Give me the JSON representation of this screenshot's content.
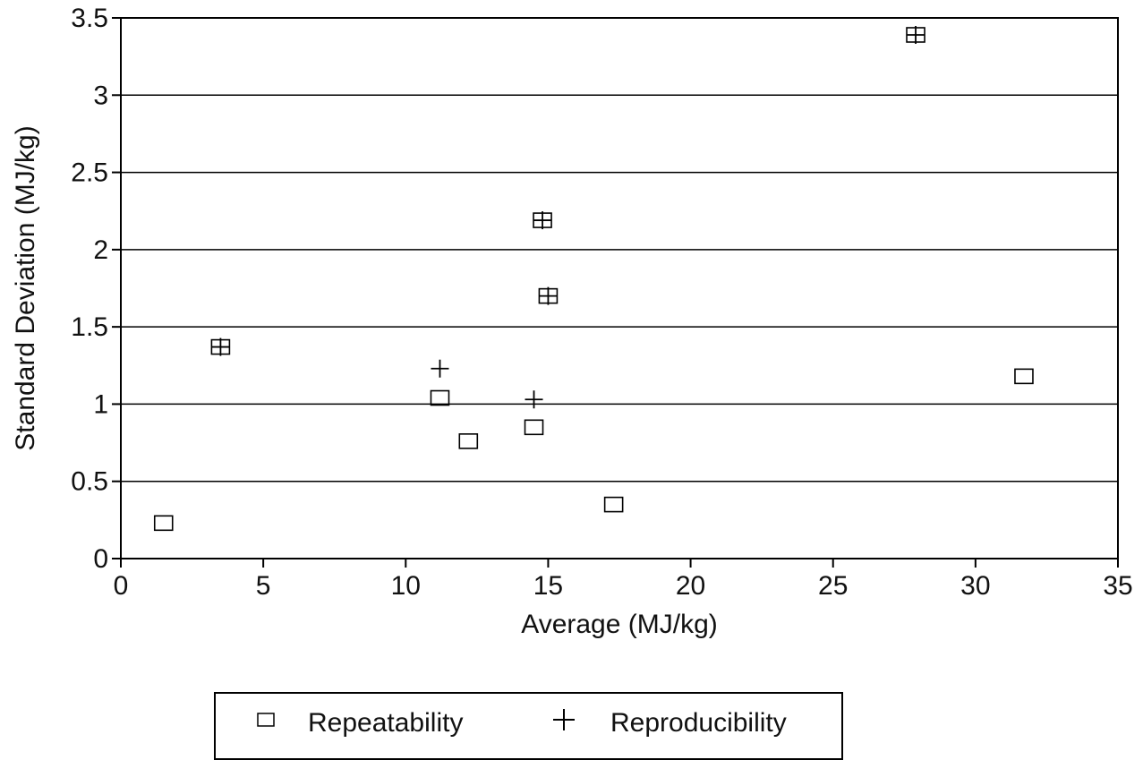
{
  "chart_data": {
    "type": "scatter",
    "title": "",
    "xlabel": "Average (MJ/kg)",
    "ylabel": "Standard Deviation (MJ/kg)",
    "xlim": [
      0,
      35
    ],
    "ylim": [
      0,
      3.5
    ],
    "x_ticks": [
      0,
      5,
      10,
      15,
      20,
      25,
      30,
      35
    ],
    "x_tick_labels": [
      "0",
      "5",
      "10",
      "15",
      "20",
      "25",
      "30",
      "35"
    ],
    "y_ticks": [
      0,
      0.5,
      1,
      1.5,
      2,
      2.5,
      3,
      3.5
    ],
    "y_tick_labels": [
      "0",
      "0.5",
      "1",
      "1.5",
      "2",
      "2.5",
      "3",
      "3.5"
    ],
    "grid": "horizontal",
    "legend_position": "bottom",
    "series": [
      {
        "name": "Repeatability",
        "marker": "square",
        "points": [
          {
            "x": 1.5,
            "y": 0.23
          },
          {
            "x": 3.5,
            "y": 1.37
          },
          {
            "x": 11.2,
            "y": 1.04
          },
          {
            "x": 12.2,
            "y": 0.76
          },
          {
            "x": 14.5,
            "y": 0.85
          },
          {
            "x": 14.8,
            "y": 2.19
          },
          {
            "x": 15.0,
            "y": 1.7
          },
          {
            "x": 17.3,
            "y": 0.35
          },
          {
            "x": 27.9,
            "y": 3.39
          },
          {
            "x": 31.7,
            "y": 1.18
          }
        ]
      },
      {
        "name": "Reproducibility",
        "marker": "plus",
        "points": [
          {
            "x": 3.5,
            "y": 1.37
          },
          {
            "x": 11.2,
            "y": 1.23
          },
          {
            "x": 14.5,
            "y": 1.03
          },
          {
            "x": 14.8,
            "y": 2.19
          },
          {
            "x": 15.0,
            "y": 1.7
          },
          {
            "x": 27.9,
            "y": 3.39
          }
        ]
      }
    ]
  }
}
